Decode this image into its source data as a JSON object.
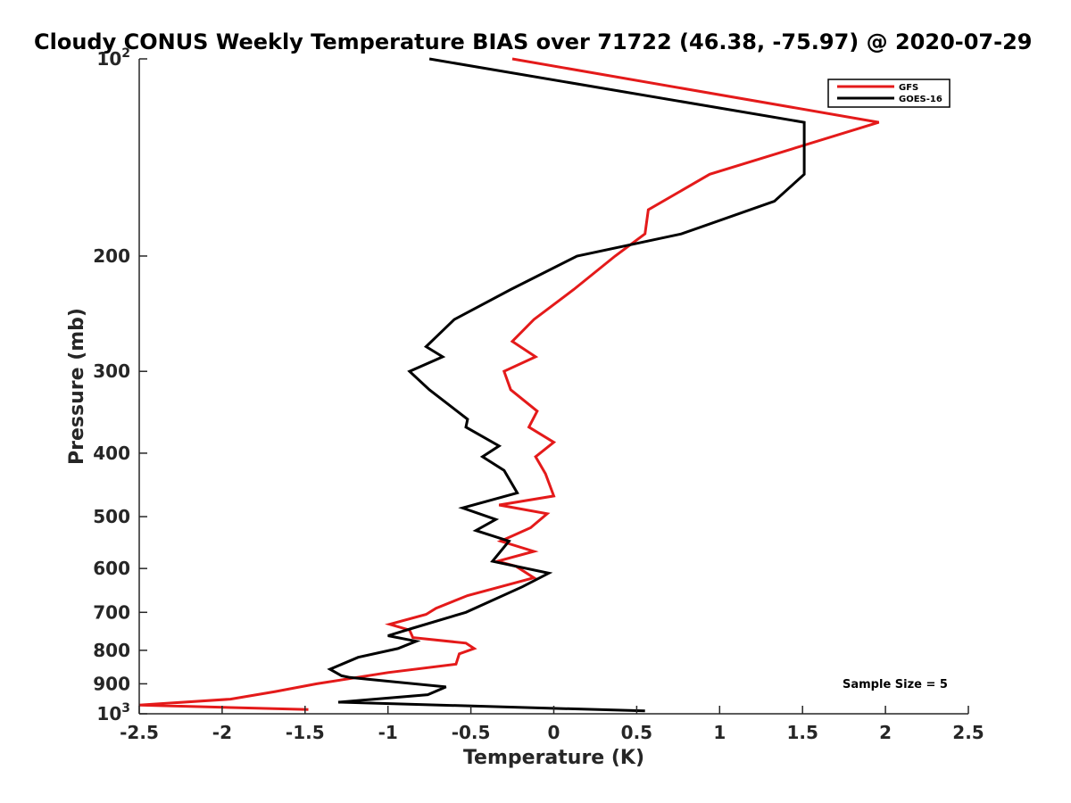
{
  "chart_data": {
    "type": "line",
    "title": "Cloudy CONUS Weekly Temperature BIAS over 71722 (46.38, -75.97) @ 2020-07-29",
    "xlabel": "Temperature (K)",
    "ylabel": "Pressure (mb)",
    "xlim": [
      -2.5,
      2.5
    ],
    "ylim": [
      100,
      1000
    ],
    "yscale": "log",
    "y_reversed": true,
    "grid": false,
    "legend_position": "top-right",
    "x_ticks": [
      {
        "value": -2.5,
        "label": "-2.5"
      },
      {
        "value": -2,
        "label": "-2"
      },
      {
        "value": -1.5,
        "label": "-1.5"
      },
      {
        "value": -1,
        "label": "-1"
      },
      {
        "value": -0.5,
        "label": "-0.5"
      },
      {
        "value": 0,
        "label": "0"
      },
      {
        "value": 0.5,
        "label": "0.5"
      },
      {
        "value": 1,
        "label": "1"
      },
      {
        "value": 1.5,
        "label": "1.5"
      },
      {
        "value": 2,
        "label": "2"
      },
      {
        "value": 2.5,
        "label": "2.5"
      }
    ],
    "y_ticks": [
      {
        "value": 100,
        "base": "10",
        "exp": "2"
      },
      {
        "value": 200,
        "label": "200"
      },
      {
        "value": 300,
        "label": "300"
      },
      {
        "value": 400,
        "label": "400"
      },
      {
        "value": 500,
        "label": "500"
      },
      {
        "value": 600,
        "label": "600"
      },
      {
        "value": 700,
        "label": "700"
      },
      {
        "value": 800,
        "label": "800"
      },
      {
        "value": 900,
        "label": "900"
      },
      {
        "value": 1000,
        "base": "10",
        "exp": "3"
      }
    ],
    "annotation": "Sample Size = 5",
    "series": [
      {
        "name": "GFS",
        "color": "#e41a1a",
        "points": [
          [
            -0.25,
            100
          ],
          [
            1.96,
            125
          ],
          [
            0.94,
            150
          ],
          [
            0.57,
            170
          ],
          [
            0.55,
            185
          ],
          [
            0.37,
            200
          ],
          [
            0.12,
            225
          ],
          [
            -0.12,
            250
          ],
          [
            -0.25,
            270
          ],
          [
            -0.11,
            285
          ],
          [
            -0.3,
            300
          ],
          [
            -0.26,
            320
          ],
          [
            -0.1,
            345
          ],
          [
            -0.15,
            365
          ],
          [
            0.0,
            385
          ],
          [
            -0.11,
            405
          ],
          [
            -0.05,
            430
          ],
          [
            0.0,
            465
          ],
          [
            -0.33,
            480
          ],
          [
            -0.04,
            495
          ],
          [
            -0.14,
            520
          ],
          [
            -0.32,
            545
          ],
          [
            -0.12,
            565
          ],
          [
            -0.34,
            585
          ],
          [
            -0.23,
            595
          ],
          [
            -0.12,
            620
          ],
          [
            -0.52,
            660
          ],
          [
            -0.71,
            690
          ],
          [
            -0.77,
            705
          ],
          [
            -0.99,
            730
          ],
          [
            -0.87,
            745
          ],
          [
            -0.85,
            765
          ],
          [
            -0.53,
            780
          ],
          [
            -0.48,
            795
          ],
          [
            -0.57,
            810
          ],
          [
            -0.59,
            840
          ],
          [
            -1.0,
            865
          ],
          [
            -1.43,
            900
          ],
          [
            -1.68,
            925
          ],
          [
            -1.95,
            950
          ],
          [
            -2.5,
            970
          ],
          [
            -1.48,
            985
          ]
        ]
      },
      {
        "name": "GOES-16",
        "color": "#000000",
        "points": [
          [
            -0.75,
            100
          ],
          [
            1.51,
            125
          ],
          [
            1.51,
            150
          ],
          [
            1.33,
            165
          ],
          [
            0.77,
            185
          ],
          [
            0.14,
            200
          ],
          [
            -0.26,
            225
          ],
          [
            -0.6,
            250
          ],
          [
            -0.77,
            275
          ],
          [
            -0.67,
            285
          ],
          [
            -0.87,
            300
          ],
          [
            -0.75,
            320
          ],
          [
            -0.52,
            355
          ],
          [
            -0.53,
            365
          ],
          [
            -0.33,
            390
          ],
          [
            -0.43,
            405
          ],
          [
            -0.3,
            425
          ],
          [
            -0.22,
            460
          ],
          [
            -0.55,
            485
          ],
          [
            -0.35,
            505
          ],
          [
            -0.47,
            525
          ],
          [
            -0.27,
            545
          ],
          [
            -0.37,
            585
          ],
          [
            -0.03,
            610
          ],
          [
            -0.19,
            640
          ],
          [
            -0.53,
            700
          ],
          [
            -0.85,
            740
          ],
          [
            -1.0,
            760
          ],
          [
            -0.83,
            775
          ],
          [
            -0.94,
            795
          ],
          [
            -1.18,
            820
          ],
          [
            -1.35,
            855
          ],
          [
            -1.28,
            875
          ],
          [
            -1.23,
            880
          ],
          [
            -0.65,
            910
          ],
          [
            -0.76,
            935
          ],
          [
            -1.3,
            960
          ],
          [
            0.55,
            990
          ]
        ]
      }
    ]
  }
}
